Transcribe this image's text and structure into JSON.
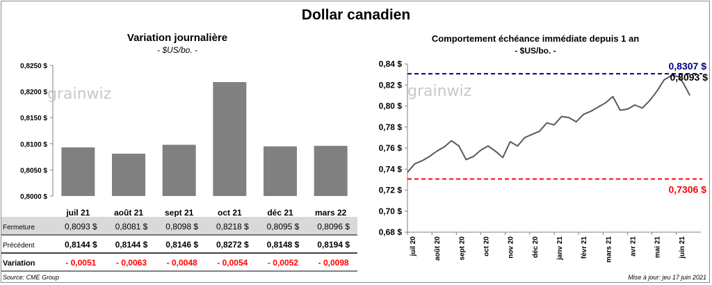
{
  "title": "Dollar canadien",
  "left": {
    "title": "Variation  journalière",
    "subtitle": "- $US/bo. -",
    "watermark": "grainwiz",
    "chart_data": {
      "type": "bar",
      "categories": [
        "juil 21",
        "août 21",
        "sept 21",
        "oct 21",
        "déc 21",
        "mars 22"
      ],
      "values": [
        0.8093,
        0.8081,
        0.8098,
        0.8218,
        0.8095,
        0.8096
      ],
      "ylim": [
        0.8,
        0.825
      ],
      "yticks": [
        "0,8000 $",
        "0,8050 $",
        "0,8100 $",
        "0,8150 $",
        "0,8200 $",
        "0,8250 $"
      ],
      "bar_color": "#808080"
    },
    "table": {
      "rows": [
        {
          "label": "Fermeture",
          "values": [
            "0,8093  $",
            "0,8081  $",
            "0,8098  $",
            "0,8218  $",
            "0,8095  $",
            "0,8096  $"
          ],
          "color": "#000000",
          "bg": "#d9d9d9"
        },
        {
          "label": "Précédent",
          "values": [
            "0,8144  $",
            "0,8144  $",
            "0,8146  $",
            "0,8272  $",
            "0,8148  $",
            "0,8194  $"
          ],
          "color": "#000000",
          "bg": "#ffffff"
        },
        {
          "label": "Variation",
          "values": [
            "- 0,0051",
            "- 0,0063",
            "- 0,0048",
            "- 0,0054",
            "- 0,0052",
            "- 0,0098"
          ],
          "color": "#ff0000",
          "bg": "#ffffff"
        }
      ]
    }
  },
  "right": {
    "title": "Comportement échéance immédiate depuis 1 an",
    "subtitle": "- $US/bo. -",
    "watermark": "grainwiz",
    "chart_data": {
      "type": "line",
      "ylim": [
        0.68,
        0.84
      ],
      "yticks": [
        "0,68 $",
        "0,70 $",
        "0,72 $",
        "0,74 $",
        "0,76 $",
        "0,78 $",
        "0,80 $",
        "0,82 $",
        "0,84 $"
      ],
      "xticks": [
        "juil 20",
        "août 20",
        "sept 20",
        "oct 20",
        "nov 20",
        "déc 20",
        "janv 21",
        "févr 21",
        "mars 21",
        "avr 21",
        "mai 21",
        "juin 21"
      ],
      "x": [
        0.0,
        0.3,
        0.6,
        0.9,
        1.2,
        1.5,
        1.8,
        2.1,
        2.4,
        2.7,
        3.0,
        3.3,
        3.6,
        3.9,
        4.2,
        4.5,
        4.8,
        5.1,
        5.4,
        5.7,
        6.0,
        6.3,
        6.6,
        6.9,
        7.2,
        7.5,
        7.8,
        8.1,
        8.4,
        8.7,
        9.0,
        9.3,
        9.6,
        9.9,
        10.2,
        10.5,
        10.8,
        11.1,
        11.3,
        11.55
      ],
      "series": [
        {
          "color": "#595959",
          "values": [
            0.737,
            0.745,
            0.748,
            0.752,
            0.757,
            0.761,
            0.767,
            0.762,
            0.749,
            0.752,
            0.758,
            0.762,
            0.757,
            0.751,
            0.766,
            0.762,
            0.77,
            0.773,
            0.776,
            0.784,
            0.782,
            0.79,
            0.789,
            0.785,
            0.792,
            0.795,
            0.799,
            0.803,
            0.809,
            0.796,
            0.797,
            0.801,
            0.798,
            0.805,
            0.814,
            0.825,
            0.829,
            0.828,
            0.821,
            0.81
          ]
        }
      ],
      "hlines": [
        {
          "value": 0.8307,
          "label": "0,8307 $",
          "color": "#00008b"
        },
        {
          "value": 0.7306,
          "label": "0,7306 $",
          "color": "#ff0000"
        }
      ],
      "last_label": "0,8093 $"
    }
  },
  "source": "Source: CME Group",
  "updated": "Mise à jour: jeu 17 juin 2021"
}
